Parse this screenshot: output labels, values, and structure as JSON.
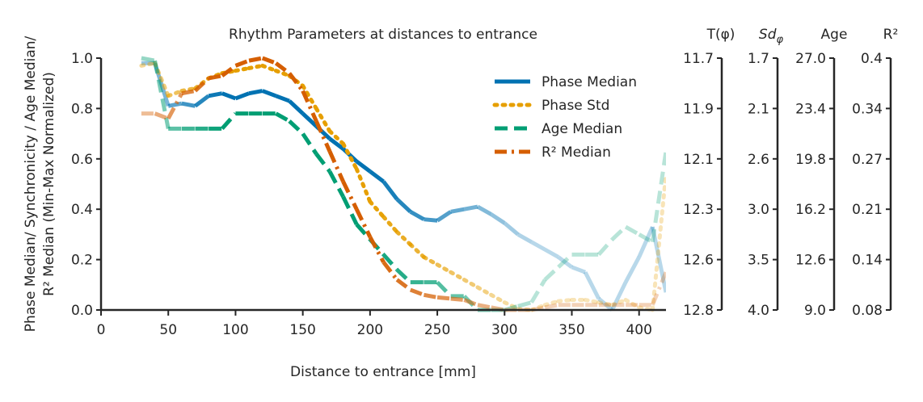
{
  "chart_data": {
    "type": "line",
    "title": "Rhythm Parameters at distances to entrance",
    "xlabel": "Distance to entrance [mm]",
    "ylabel_line1": "Phase Median/ Synchronicity / Age Median/",
    "ylabel_line2": "R² Median (Min-Max Normalized)",
    "xlim": [
      0,
      420
    ],
    "ylim": [
      0,
      1
    ],
    "xticks": [
      "0",
      "50",
      "100",
      "150",
      "200",
      "250",
      "300",
      "350",
      "400"
    ],
    "yticks": [
      "0.0",
      "0.2",
      "0.4",
      "0.6",
      "0.8",
      "1.0"
    ],
    "legend_position": "upper-right",
    "series": [
      {
        "name": "Phase Median",
        "color": "#0072b2",
        "dash": "solid",
        "x": [
          30,
          40,
          50,
          60,
          70,
          80,
          90,
          100,
          110,
          120,
          130,
          140,
          150,
          160,
          170,
          180,
          190,
          200,
          210,
          220,
          230,
          240,
          250,
          260,
          270,
          280,
          290,
          300,
          310,
          320,
          330,
          340,
          350,
          360,
          370,
          380,
          390,
          400,
          410,
          420
        ],
        "y": [
          0.98,
          0.98,
          0.81,
          0.82,
          0.81,
          0.85,
          0.86,
          0.84,
          0.86,
          0.87,
          0.85,
          0.83,
          0.78,
          0.73,
          0.68,
          0.64,
          0.59,
          0.55,
          0.51,
          0.44,
          0.39,
          0.36,
          0.355,
          0.39,
          0.4,
          0.41,
          0.38,
          0.345,
          0.3,
          0.27,
          0.24,
          0.21,
          0.17,
          0.15,
          0.045,
          0.0,
          0.11,
          0.21,
          0.33,
          0.07
        ]
      },
      {
        "name": "Phase Std",
        "color": "#e69f00",
        "dash": "dotted",
        "x": [
          30,
          40,
          50,
          60,
          70,
          80,
          90,
          100,
          110,
          120,
          130,
          140,
          150,
          160,
          170,
          180,
          190,
          200,
          210,
          220,
          230,
          240,
          250,
          260,
          270,
          280,
          290,
          300,
          310,
          320,
          330,
          340,
          350,
          360,
          370,
          380,
          390,
          400,
          410,
          420
        ],
        "y": [
          0.97,
          0.98,
          0.85,
          0.87,
          0.88,
          0.92,
          0.94,
          0.95,
          0.96,
          0.97,
          0.95,
          0.93,
          0.89,
          0.8,
          0.71,
          0.66,
          0.56,
          0.43,
          0.37,
          0.31,
          0.26,
          0.21,
          0.18,
          0.15,
          0.12,
          0.09,
          0.06,
          0.03,
          0.005,
          0.0,
          0.02,
          0.035,
          0.04,
          0.04,
          0.03,
          0.02,
          0.04,
          0.01,
          0.0,
          0.54
        ]
      },
      {
        "name": "Age Median",
        "color": "#009e73",
        "dash": "dashed",
        "x": [
          30,
          40,
          50,
          60,
          70,
          80,
          90,
          100,
          110,
          120,
          130,
          140,
          150,
          160,
          170,
          180,
          190,
          200,
          210,
          220,
          230,
          240,
          250,
          260,
          270,
          280,
          290,
          300,
          310,
          320,
          330,
          340,
          350,
          360,
          370,
          380,
          390,
          400,
          410,
          420
        ],
        "y": [
          1.0,
          0.99,
          0.72,
          0.72,
          0.72,
          0.72,
          0.72,
          0.78,
          0.78,
          0.78,
          0.78,
          0.75,
          0.7,
          0.62,
          0.55,
          0.45,
          0.34,
          0.28,
          0.22,
          0.16,
          0.11,
          0.11,
          0.11,
          0.055,
          0.055,
          0.0,
          0.0,
          0.0,
          0.015,
          0.03,
          0.12,
          0.17,
          0.22,
          0.22,
          0.22,
          0.28,
          0.33,
          0.3,
          0.27,
          0.63
        ]
      },
      {
        "name": "R² Median",
        "color": "#d55e00",
        "dash": "dashdot",
        "x": [
          30,
          40,
          50,
          60,
          70,
          80,
          90,
          100,
          110,
          120,
          130,
          140,
          150,
          160,
          170,
          180,
          190,
          200,
          210,
          220,
          230,
          240,
          250,
          260,
          270,
          280,
          290,
          300,
          310,
          320,
          330,
          340,
          350,
          360,
          370,
          380,
          390,
          400,
          410,
          420
        ],
        "y": [
          0.78,
          0.78,
          0.76,
          0.86,
          0.87,
          0.92,
          0.93,
          0.97,
          0.99,
          1.0,
          0.98,
          0.94,
          0.87,
          0.75,
          0.63,
          0.51,
          0.4,
          0.29,
          0.19,
          0.12,
          0.08,
          0.06,
          0.05,
          0.045,
          0.04,
          0.02,
          0.01,
          0.0,
          0.0,
          0.0,
          0.01,
          0.02,
          0.02,
          0.02,
          0.02,
          0.02,
          0.02,
          0.02,
          0.02,
          0.15
        ]
      }
    ],
    "secondary_axes": [
      {
        "label": "T(φ)",
        "ticks": [
          "11.7",
          "11.9",
          "12.1",
          "12.3",
          "12.6",
          "12.8"
        ]
      },
      {
        "label_main": "Sd",
        "label_sub": "φ",
        "ticks": [
          "1.7",
          "2.1",
          "2.6",
          "3.0",
          "3.5",
          "4.0"
        ]
      },
      {
        "label": "Age",
        "ticks": [
          "27.0",
          "23.4",
          "19.8",
          "16.2",
          "12.6",
          "9.0"
        ]
      },
      {
        "label": "R²",
        "ticks": [
          "0.4",
          "0.34",
          "0.27",
          "0.21",
          "0.14",
          "0.08"
        ]
      }
    ]
  }
}
